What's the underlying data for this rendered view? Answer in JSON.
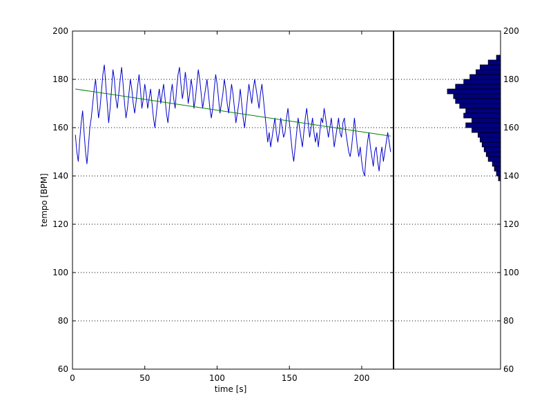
{
  "chart_data": {
    "type": "line",
    "xlabel": "time [s]",
    "ylabel": "tempo [BPM]",
    "xlim": [
      0,
      222
    ],
    "ylim": [
      60,
      200
    ],
    "x_ticks": [
      0,
      50,
      100,
      150,
      200
    ],
    "y_ticks": [
      60,
      80,
      100,
      120,
      140,
      160,
      180,
      200
    ],
    "grid": "horizontal dotted",
    "colors": {
      "tempo": "#0000cc",
      "trend": "#007f00",
      "histogram": "#00007f",
      "axes": "#000000"
    },
    "series": [
      {
        "kind": "line",
        "x": [
          2,
          3,
          4,
          5,
          6,
          7,
          8,
          9,
          10,
          11,
          12,
          13,
          14,
          15,
          16,
          17,
          18,
          19,
          20,
          21,
          22,
          23,
          24,
          25,
          26,
          27,
          28,
          29,
          30,
          31,
          32,
          33,
          34,
          35,
          36,
          37,
          38,
          39,
          40,
          41,
          42,
          43,
          44,
          45,
          46,
          47,
          48,
          49,
          50,
          51,
          52,
          53,
          54,
          55,
          56,
          57,
          58,
          59,
          60,
          61,
          62,
          63,
          64,
          65,
          66,
          67,
          68,
          69,
          70,
          71,
          72,
          73,
          74,
          75,
          76,
          77,
          78,
          79,
          80,
          81,
          82,
          83,
          84,
          85,
          86,
          87,
          88,
          89,
          90,
          91,
          92,
          93,
          94,
          95,
          96,
          97,
          98,
          99,
          100,
          101,
          102,
          103,
          104,
          105,
          106,
          107,
          108,
          109,
          110,
          111,
          112,
          113,
          114,
          115,
          116,
          117,
          118,
          119,
          120,
          121,
          122,
          123,
          124,
          125,
          126,
          127,
          128,
          129,
          130,
          131,
          132,
          133,
          134,
          135,
          136,
          137,
          138,
          139,
          140,
          141,
          142,
          143,
          144,
          145,
          146,
          147,
          148,
          149,
          150,
          151,
          152,
          153,
          154,
          155,
          156,
          157,
          158,
          159,
          160,
          161,
          162,
          163,
          164,
          165,
          166,
          167,
          168,
          169,
          170,
          171,
          172,
          173,
          174,
          175,
          176,
          177,
          178,
          179,
          180,
          181,
          182,
          183,
          184,
          185,
          186,
          187,
          188,
          189,
          190,
          191,
          192,
          193,
          194,
          195,
          196,
          197,
          198,
          199,
          200,
          201,
          202,
          203,
          204,
          205,
          206,
          207,
          208,
          209,
          210,
          211,
          212,
          213,
          214,
          215,
          216,
          217,
          218,
          219,
          220
        ],
        "y": [
          157,
          150,
          146,
          155,
          162,
          167,
          158,
          150,
          145,
          152,
          160,
          164,
          170,
          176,
          180,
          172,
          164,
          168,
          175,
          182,
          186,
          178,
          170,
          162,
          168,
          176,
          184,
          180,
          172,
          168,
          174,
          180,
          185,
          178,
          170,
          164,
          168,
          174,
          180,
          176,
          170,
          166,
          171,
          177,
          182,
          176,
          168,
          172,
          178,
          174,
          168,
          172,
          176,
          170,
          164,
          160,
          166,
          172,
          176,
          170,
          174,
          178,
          172,
          166,
          162,
          168,
          174,
          178,
          172,
          168,
          176,
          182,
          185,
          178,
          172,
          176,
          183,
          178,
          170,
          174,
          180,
          176,
          168,
          172,
          178,
          184,
          180,
          174,
          168,
          172,
          176,
          180,
          174,
          168,
          164,
          168,
          176,
          182,
          178,
          172,
          166,
          170,
          174,
          180,
          176,
          170,
          166,
          172,
          178,
          174,
          168,
          162,
          166,
          170,
          176,
          170,
          164,
          160,
          166,
          172,
          178,
          174,
          170,
          176,
          180,
          176,
          172,
          168,
          174,
          178,
          172,
          166,
          160,
          154,
          158,
          152,
          156,
          160,
          164,
          158,
          154,
          158,
          164,
          160,
          156,
          158,
          164,
          168,
          162,
          156,
          150,
          146,
          152,
          158,
          164,
          160,
          156,
          152,
          158,
          164,
          168,
          162,
          156,
          160,
          164,
          158,
          154,
          158,
          152,
          158,
          164,
          162,
          168,
          164,
          160,
          156,
          160,
          164,
          158,
          152,
          156,
          160,
          164,
          158,
          156,
          162,
          164,
          158,
          154,
          150,
          148,
          152,
          158,
          164,
          158,
          152,
          148,
          152,
          146,
          142,
          140,
          148,
          154,
          158,
          152,
          148,
          144,
          150,
          152,
          146,
          142,
          148,
          152,
          146,
          150,
          154,
          158,
          154,
          150
        ]
      },
      {
        "kind": "linear fit",
        "x": [
          2,
          220
        ],
        "y": [
          176,
          156.5
        ]
      }
    ],
    "histogram": {
      "orientation": "horizontal",
      "bins_bpm": [
        139,
        141,
        143,
        145,
        147,
        149,
        151,
        153,
        155,
        157,
        159,
        161,
        163,
        165,
        167,
        169,
        171,
        173,
        175,
        177,
        179,
        181,
        183,
        185,
        187,
        189
      ],
      "counts": [
        1,
        2,
        3,
        4,
        6,
        7,
        8,
        9,
        10,
        11,
        14,
        17,
        14,
        18,
        17,
        20,
        22,
        23,
        26,
        22,
        18,
        15,
        12,
        10,
        6,
        2
      ]
    }
  }
}
